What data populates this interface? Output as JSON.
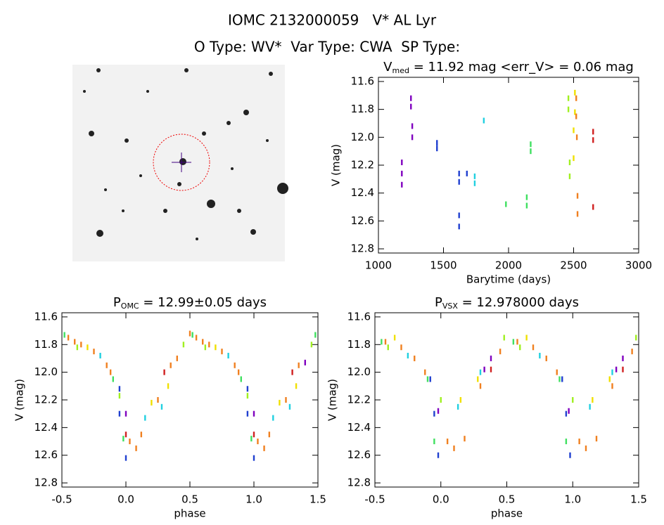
{
  "header": {
    "title": "IOMC 2132000059   V* AL Lyr",
    "subtitle": "O Type: WV*  Var Type: CWA  SP Type:"
  },
  "chart_data": [
    {
      "type": "scatter",
      "title": {
        "main": "V",
        "sub": "med",
        "rest": " = 11.92 mag <err_V> = 0.06 mag"
      },
      "xlabel": "Barytime (days)",
      "ylabel": "V (mag)",
      "xlim": [
        1000,
        3000
      ],
      "xticks": [
        1000,
        1500,
        2000,
        2500,
        3000
      ],
      "ylim": [
        12.83,
        11.57
      ],
      "yticks": [
        11.6,
        11.8,
        {
          "value": 12,
          "label": "12.0"
        },
        12.2,
        12.4,
        12.6,
        12.8
      ],
      "series": [
        {
          "color": "#7f00bf",
          "x": [
            1180,
            1180,
            1180,
            1250,
            1250,
            1260,
            1260
          ],
          "values": [
            12.18,
            12.26,
            12.34,
            11.72,
            11.78,
            11.92,
            12.0
          ]
        },
        {
          "color": "#2040d0",
          "x": [
            1450,
            1450,
            1620,
            1620,
            1620,
            1620,
            1680
          ],
          "values": [
            12.04,
            12.08,
            12.26,
            12.32,
            12.56,
            12.64,
            12.26
          ]
        },
        {
          "color": "#20d0e0",
          "x": [
            1740,
            1740,
            1810
          ],
          "values": [
            12.28,
            12.33,
            11.88
          ]
        },
        {
          "color": "#40e060",
          "x": [
            1980,
            2140,
            2140,
            2170,
            2170
          ],
          "values": [
            12.48,
            12.43,
            12.49,
            12.05,
            12.1
          ]
        },
        {
          "color": "#a0f020",
          "x": [
            2460,
            2460,
            2470,
            2470
          ],
          "values": [
            11.72,
            11.8,
            12.18,
            12.28
          ]
        },
        {
          "color": "#f0e000",
          "x": [
            2500,
            2500,
            2510,
            2510
          ],
          "values": [
            11.95,
            12.15,
            11.68,
            11.82
          ]
        },
        {
          "color": "#f08020",
          "x": [
            2520,
            2520,
            2525,
            2530,
            2530
          ],
          "values": [
            11.72,
            11.85,
            12.0,
            12.42,
            12.55
          ]
        },
        {
          "color": "#d02020",
          "x": [
            2650,
            2650,
            2650
          ],
          "values": [
            11.96,
            12.02,
            12.5
          ]
        }
      ]
    },
    {
      "type": "scatter",
      "title": {
        "main": "P",
        "sub": "OMC",
        "rest": " = 12.99±0.05 days"
      },
      "xlabel": "phase",
      "ylabel": "V (mag)",
      "xlim": [
        -0.5,
        1.5
      ],
      "xticks": [
        -0.5,
        {
          "value": 0,
          "label": "0.0"
        },
        0.5,
        {
          "value": 1,
          "label": "1.0"
        },
        1.5
      ],
      "ylim": [
        12.83,
        11.57
      ],
      "yticks": [
        11.6,
        11.8,
        {
          "value": 12,
          "label": "12.0"
        },
        12.2,
        12.4,
        12.6,
        12.8
      ],
      "series": [
        {
          "color": "#7f00bf",
          "x": [
            0.0,
            1.0,
            1.4
          ],
          "values": [
            12.3,
            12.3,
            11.93
          ]
        },
        {
          "color": "#2040d0",
          "x": [
            -0.05,
            -0.05,
            0.0,
            0.95,
            0.95,
            1.0
          ],
          "values": [
            12.12,
            12.3,
            12.62,
            12.12,
            12.3,
            12.62
          ]
        },
        {
          "color": "#20d0e0",
          "x": [
            -0.2,
            0.15,
            0.28,
            0.8,
            1.15,
            1.28
          ],
          "values": [
            11.88,
            12.33,
            12.25,
            11.88,
            12.33,
            12.25
          ]
        },
        {
          "color": "#40e060",
          "x": [
            -0.48,
            -0.1,
            -0.02,
            0.52,
            0.9,
            0.98,
            1.48
          ],
          "values": [
            11.73,
            12.05,
            12.48,
            11.73,
            12.05,
            12.48,
            11.73
          ]
        },
        {
          "color": "#a0f020",
          "x": [
            -0.38,
            -0.05,
            0.45,
            0.62,
            0.95,
            1.45
          ],
          "values": [
            11.82,
            12.17,
            11.8,
            11.82,
            12.17,
            11.8
          ]
        },
        {
          "color": "#f0e000",
          "x": [
            -0.3,
            0.2,
            0.33,
            0.7,
            1.2,
            1.33
          ],
          "values": [
            11.82,
            12.22,
            12.1,
            11.82,
            12.22,
            12.1
          ]
        },
        {
          "color": "#f08020",
          "x": [
            -0.45,
            -0.4,
            -0.35,
            -0.25,
            -0.15,
            -0.12,
            0.03,
            0.08,
            0.12,
            0.25,
            0.35,
            0.4,
            0.5,
            0.55,
            0.6,
            0.65,
            0.75,
            0.85,
            0.88,
            1.03,
            1.08,
            1.12,
            1.25,
            1.35
          ],
          "values": [
            11.75,
            11.78,
            11.8,
            11.85,
            11.95,
            12.0,
            12.5,
            12.55,
            12.45,
            12.2,
            11.95,
            11.9,
            11.72,
            11.75,
            11.78,
            11.8,
            11.85,
            11.95,
            12.0,
            12.5,
            12.55,
            12.45,
            12.2,
            11.95
          ]
        },
        {
          "color": "#d02020",
          "x": [
            0.0,
            0.3,
            1.0,
            1.3
          ],
          "values": [
            12.45,
            12.0,
            12.45,
            12.0
          ]
        }
      ]
    },
    {
      "type": "scatter",
      "title": {
        "main": "P",
        "sub": "VSX",
        "rest": " = 12.978000 days"
      },
      "xlabel": "phase",
      "ylabel": "V (mag)",
      "xlim": [
        -0.5,
        1.5
      ],
      "xticks": [
        -0.5,
        {
          "value": 0,
          "label": "0.0"
        },
        0.5,
        {
          "value": 1,
          "label": "1.0"
        },
        1.5
      ],
      "ylim": [
        12.83,
        11.57
      ],
      "yticks": [
        11.6,
        11.8,
        {
          "value": 12,
          "label": "12.0"
        },
        12.2,
        12.4,
        12.6,
        12.8
      ],
      "series": [
        {
          "color": "#7f00bf",
          "x": [
            -0.02,
            0.33,
            0.38,
            0.97,
            1.33,
            1.38
          ],
          "values": [
            12.28,
            11.98,
            11.9,
            12.28,
            11.98,
            11.9
          ]
        },
        {
          "color": "#2040d0",
          "x": [
            -0.08,
            -0.05,
            -0.02,
            0.92,
            0.95,
            0.98
          ],
          "values": [
            12.05,
            12.3,
            12.6,
            12.05,
            12.3,
            12.6
          ]
        },
        {
          "color": "#20d0e0",
          "x": [
            -0.25,
            0.13,
            0.3,
            0.75,
            1.13,
            1.3
          ],
          "values": [
            11.88,
            12.25,
            12.0,
            11.88,
            12.25,
            12.0
          ]
        },
        {
          "color": "#40e060",
          "x": [
            -0.45,
            -0.1,
            -0.05,
            0.55,
            0.9,
            0.95
          ],
          "values": [
            11.78,
            12.05,
            12.5,
            11.78,
            12.05,
            12.5
          ]
        },
        {
          "color": "#a0f020",
          "x": [
            -0.4,
            0.0,
            0.48,
            0.6,
            1.0,
            1.48
          ],
          "values": [
            11.82,
            12.2,
            11.75,
            11.82,
            12.2,
            11.75
          ]
        },
        {
          "color": "#f0e000",
          "x": [
            -0.35,
            0.15,
            0.28,
            0.65,
            1.15,
            1.28
          ],
          "values": [
            11.75,
            12.2,
            12.05,
            11.75,
            12.2,
            12.05
          ]
        },
        {
          "color": "#f08020",
          "x": [
            -0.42,
            -0.3,
            -0.2,
            -0.12,
            0.05,
            0.1,
            0.18,
            0.3,
            0.45,
            0.58,
            0.7,
            0.8,
            0.88,
            1.05,
            1.1,
            1.18,
            1.3,
            1.45
          ],
          "values": [
            11.78,
            11.82,
            11.9,
            12.0,
            12.5,
            12.55,
            12.48,
            12.1,
            11.85,
            11.78,
            11.82,
            11.9,
            12.0,
            12.5,
            12.55,
            12.48,
            12.1,
            11.85
          ]
        },
        {
          "color": "#d02020",
          "x": [
            0.38,
            1.38
          ],
          "values": [
            11.98,
            11.98
          ]
        }
      ]
    }
  ]
}
